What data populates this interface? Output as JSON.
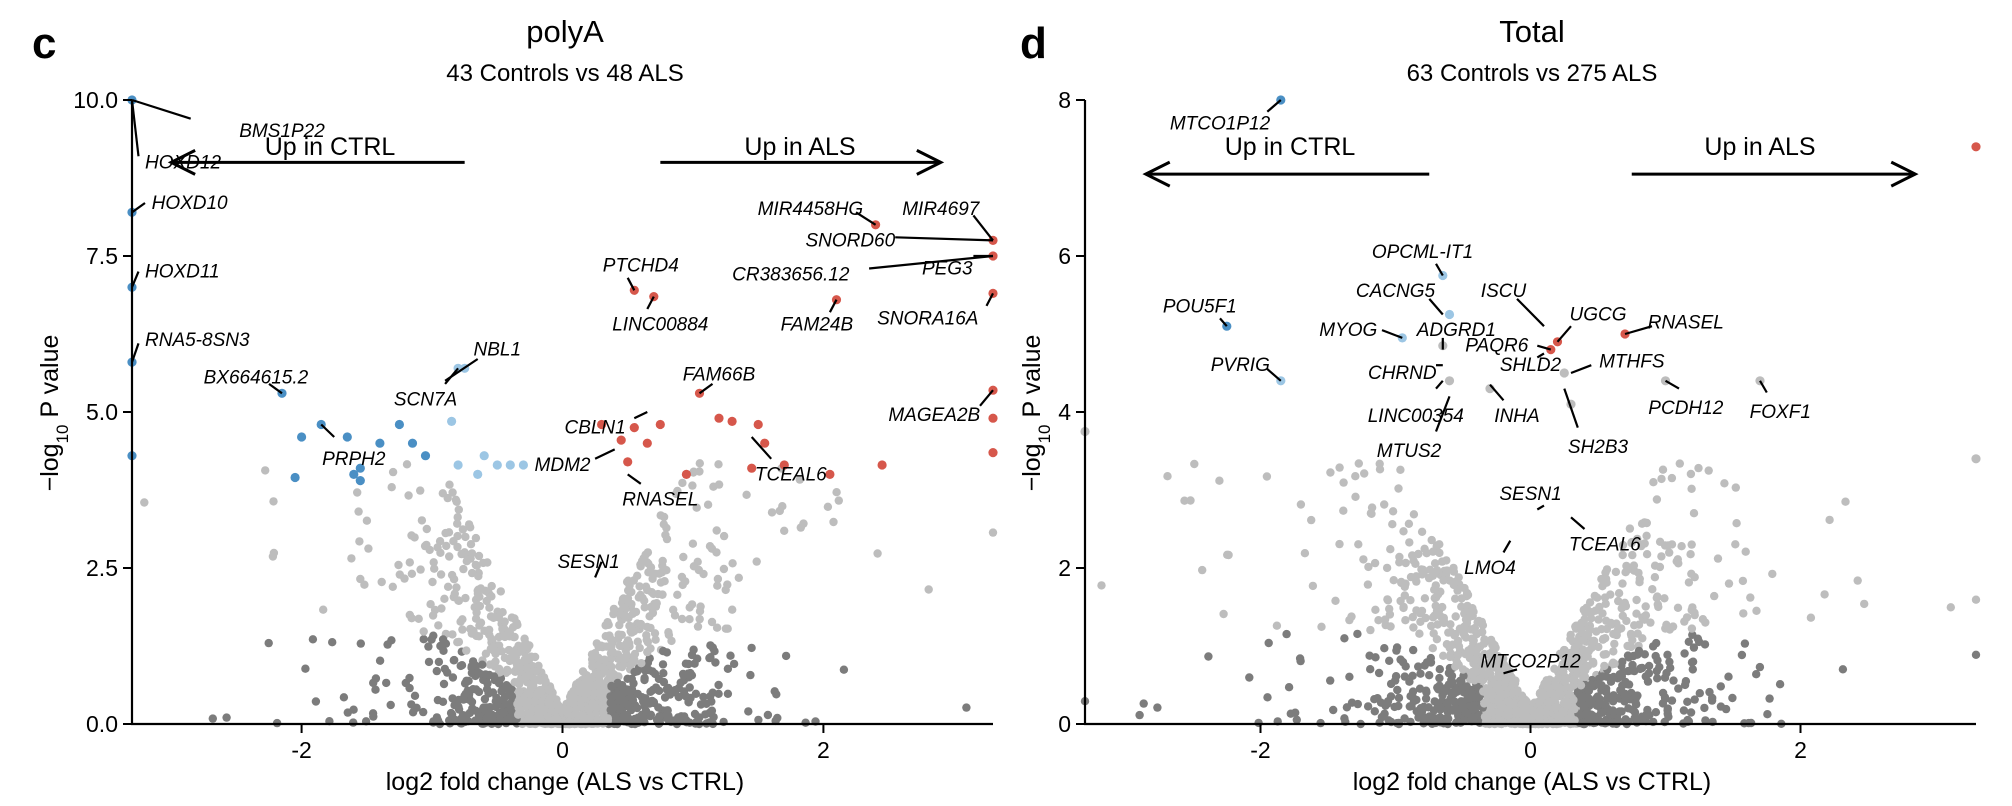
{
  "panels": [
    {
      "letter": "c",
      "title": "polyA",
      "subtitle": "43 Controls vs 48 ALS",
      "xlabel": "log2 fold change (ALS vs CTRL)",
      "ylabel": "−log",
      "ylabel_sub": "10",
      "ylabel_suffix": " P value",
      "up_ctrl": "Up in CTRL",
      "up_als": "Up in ALS"
    },
    {
      "letter": "d",
      "title": "Total",
      "subtitle": "63 Controls vs 275 ALS",
      "xlabel": "log2 fold change (ALS vs CTRL)",
      "ylabel": "−log",
      "ylabel_sub": "10",
      "ylabel_suffix": " P value",
      "up_ctrl": "Up in CTRL",
      "up_als": "Up in ALS"
    }
  ],
  "colors": {
    "up": "#d6574b",
    "down_dark": "#4a8fc4",
    "down_light": "#9cc6e4",
    "ns_light": "#bdbdbd",
    "ns_dark": "#7c7c7c"
  },
  "chart_data": [
    {
      "type": "scatter",
      "title": "polyA",
      "subtitle": "43 Controls vs 48 ALS",
      "xlabel": "log2 fold change (ALS vs CTRL)",
      "ylabel": "-log10 P value",
      "xlim": [
        -3.3,
        3.3
      ],
      "ylim": [
        0,
        10
      ],
      "xticks": [
        -2,
        0,
        2
      ],
      "xtick_labels": [
        "-2",
        "0",
        "2"
      ],
      "yticks": [
        0,
        2.5,
        5,
        7.5,
        10
      ],
      "ytick_labels": [
        "0.0",
        "2.5",
        "5.0",
        "7.5",
        "10.0"
      ],
      "cloud_n": 1500,
      "arrows": [
        [
          -0.75,
          -3.0,
          9.0
        ],
        [
          0.75,
          2.9,
          9.0
        ]
      ],
      "points": [
        {
          "x": -3.3,
          "y": 10.0,
          "c": "down_dark"
        },
        {
          "x": -3.3,
          "y": 8.2,
          "c": "down_dark"
        },
        {
          "x": -3.3,
          "y": 7.0,
          "c": "down_dark"
        },
        {
          "x": -3.3,
          "y": 5.8,
          "c": "down_dark"
        },
        {
          "x": -2.15,
          "y": 5.3,
          "c": "down_dark"
        },
        {
          "x": -2.0,
          "y": 4.6,
          "c": "down_dark"
        },
        {
          "x": -1.85,
          "y": 4.8,
          "c": "down_dark"
        },
        {
          "x": -1.65,
          "y": 4.6,
          "c": "down_dark"
        },
        {
          "x": -1.6,
          "y": 4.0,
          "c": "down_dark"
        },
        {
          "x": -1.55,
          "y": 4.1,
          "c": "down_dark"
        },
        {
          "x": -1.4,
          "y": 4.5,
          "c": "down_dark"
        },
        {
          "x": -1.25,
          "y": 4.8,
          "c": "down_dark"
        },
        {
          "x": -1.15,
          "y": 4.5,
          "c": "down_dark"
        },
        {
          "x": -1.05,
          "y": 4.3,
          "c": "down_dark"
        },
        {
          "x": -2.05,
          "y": 3.95,
          "c": "down_dark"
        },
        {
          "x": -1.55,
          "y": 3.9,
          "c": "down_dark"
        },
        {
          "x": -3.3,
          "y": 4.3,
          "c": "down_dark"
        },
        {
          "x": -0.8,
          "y": 5.7,
          "c": "down_light"
        },
        {
          "x": -0.75,
          "y": 5.7,
          "c": "down_light"
        },
        {
          "x": -0.85,
          "y": 4.85,
          "c": "down_light"
        },
        {
          "x": -0.8,
          "y": 4.15,
          "c": "down_light"
        },
        {
          "x": -0.65,
          "y": 4.0,
          "c": "down_light"
        },
        {
          "x": -0.6,
          "y": 4.3,
          "c": "down_light"
        },
        {
          "x": -0.5,
          "y": 4.15,
          "c": "down_light"
        },
        {
          "x": -0.4,
          "y": 4.15,
          "c": "down_light"
        },
        {
          "x": -0.3,
          "y": 4.15,
          "c": "down_light"
        },
        {
          "x": 0.55,
          "y": 6.95,
          "c": "up"
        },
        {
          "x": 0.7,
          "y": 6.85,
          "c": "up"
        },
        {
          "x": 1.05,
          "y": 5.3,
          "c": "up"
        },
        {
          "x": 2.1,
          "y": 6.8,
          "c": "up"
        },
        {
          "x": 2.4,
          "y": 8.0,
          "c": "up"
        },
        {
          "x": 3.3,
          "y": 7.75,
          "c": "up"
        },
        {
          "x": 3.3,
          "y": 7.5,
          "c": "up"
        },
        {
          "x": 3.3,
          "y": 6.9,
          "c": "up"
        },
        {
          "x": 3.3,
          "y": 5.35,
          "c": "up"
        },
        {
          "x": 3.3,
          "y": 4.9,
          "c": "up"
        },
        {
          "x": 3.3,
          "y": 4.35,
          "c": "up"
        },
        {
          "x": 0.3,
          "y": 4.8,
          "c": "up"
        },
        {
          "x": 0.45,
          "y": 4.55,
          "c": "up"
        },
        {
          "x": 0.55,
          "y": 4.75,
          "c": "up"
        },
        {
          "x": 0.65,
          "y": 4.5,
          "c": "up"
        },
        {
          "x": 0.75,
          "y": 4.8,
          "c": "up"
        },
        {
          "x": 0.5,
          "y": 4.2,
          "c": "up"
        },
        {
          "x": 0.95,
          "y": 4.0,
          "c": "up"
        },
        {
          "x": 1.2,
          "y": 4.9,
          "c": "up"
        },
        {
          "x": 1.3,
          "y": 4.85,
          "c": "up"
        },
        {
          "x": 1.5,
          "y": 4.8,
          "c": "up"
        },
        {
          "x": 1.55,
          "y": 4.5,
          "c": "up"
        },
        {
          "x": 1.45,
          "y": 4.1,
          "c": "up"
        },
        {
          "x": 1.7,
          "y": 4.15,
          "c": "up"
        },
        {
          "x": 2.05,
          "y": 4.0,
          "c": "up"
        },
        {
          "x": 2.45,
          "y": 4.15,
          "c": "up"
        }
      ],
      "labels": [
        {
          "text": "BMS1P22",
          "lx": -2.15,
          "ly": 9.5,
          "anchor": "middle",
          "px": -3.3,
          "py": 10.0,
          "ex": -2.85,
          "ey": 9.7
        },
        {
          "text": "HOXD12",
          "lx": -3.2,
          "ly": 9.0,
          "anchor": "start",
          "px": -3.3,
          "py": 10.0,
          "ex": -3.25,
          "ey": 9.1
        },
        {
          "text": "HOXD10",
          "lx": -3.15,
          "ly": 8.35,
          "anchor": "start",
          "px": -3.3,
          "py": 8.2,
          "ex": -3.2,
          "ey": 8.35
        },
        {
          "text": "HOXD11",
          "lx": -3.2,
          "ly": 7.25,
          "anchor": "start",
          "px": -3.3,
          "py": 7.0,
          "ex": -3.25,
          "ey": 7.25
        },
        {
          "text": "RNA5-8SN3",
          "lx": -3.2,
          "ly": 6.15,
          "anchor": "start",
          "px": -3.3,
          "py": 5.8,
          "ex": -3.25,
          "ey": 6.1
        },
        {
          "text": "BX664615.2",
          "lx": -2.35,
          "ly": 5.55,
          "anchor": "middle",
          "px": -2.15,
          "py": 5.3,
          "ex": -2.25,
          "ey": 5.45
        },
        {
          "text": "NBL1",
          "lx": -0.5,
          "ly": 6.0,
          "anchor": "middle",
          "px": -0.9,
          "py": 5.5,
          "ex": -0.65,
          "ey": 5.85
        },
        {
          "text": "SCN7A",
          "lx": -1.05,
          "ly": 5.2,
          "anchor": "middle",
          "px": -0.8,
          "py": 5.7,
          "ex": -0.9,
          "ey": 5.45
        },
        {
          "text": "PRPH2",
          "lx": -1.6,
          "ly": 4.25,
          "anchor": "middle",
          "px": -1.85,
          "py": 4.8,
          "ex": -1.75,
          "ey": 4.6
        },
        {
          "text": "PTCHD4",
          "lx": 0.6,
          "ly": 7.35,
          "anchor": "middle",
          "px": 0.55,
          "py": 6.95,
          "ex": 0.5,
          "ey": 7.15
        },
        {
          "text": "LINC00884",
          "lx": 0.75,
          "ly": 6.4,
          "anchor": "middle",
          "px": 0.7,
          "py": 6.85,
          "ex": 0.65,
          "ey": 6.65
        },
        {
          "text": "FAM66B",
          "lx": 1.2,
          "ly": 5.6,
          "anchor": "middle",
          "px": 1.05,
          "py": 5.3,
          "ex": 1.15,
          "ey": 5.45
        },
        {
          "text": "CBLN1",
          "lx": 0.25,
          "ly": 4.75,
          "anchor": "middle",
          "px": 0.65,
          "py": 5.0,
          "ex": 0.55,
          "ey": 4.9
        },
        {
          "text": "MDM2",
          "lx": 0.0,
          "ly": 4.15,
          "anchor": "middle",
          "px": 0.4,
          "py": 4.4,
          "ex": 0.25,
          "ey": 4.25
        },
        {
          "text": "RNASEL",
          "lx": 0.75,
          "ly": 3.6,
          "anchor": "middle",
          "px": 0.5,
          "py": 4.0,
          "ex": 0.6,
          "ey": 3.85
        },
        {
          "text": "SESN1",
          "lx": 0.2,
          "ly": 2.6,
          "anchor": "middle",
          "px": 0.3,
          "py": 2.6,
          "ex": 0.25,
          "ey": 2.35
        },
        {
          "text": "MIR4458HG",
          "lx": 1.9,
          "ly": 8.25,
          "anchor": "middle",
          "px": 2.4,
          "py": 8.0,
          "ex": 2.25,
          "ey": 8.2
        },
        {
          "text": "MIR4697",
          "lx": 2.9,
          "ly": 8.25,
          "anchor": "middle",
          "px": 3.3,
          "py": 7.75,
          "ex": 3.15,
          "ey": 8.15
        },
        {
          "text": "SNORD60",
          "lx": 2.55,
          "ly": 7.75,
          "anchor": "end",
          "px": 3.3,
          "py": 7.75,
          "ex": 2.55,
          "ey": 7.8
        },
        {
          "text": "PEG3",
          "lx": 2.95,
          "ly": 7.3,
          "anchor": "middle",
          "px": 3.3,
          "py": 7.5,
          "ex": 3.15,
          "ey": 7.5
        },
        {
          "text": "CR383656.12",
          "lx": 1.75,
          "ly": 7.2,
          "anchor": "middle",
          "px": 3.3,
          "py": 7.5,
          "ex": 2.35,
          "ey": 7.3
        },
        {
          "text": "FAM24B",
          "lx": 1.95,
          "ly": 6.4,
          "anchor": "middle",
          "px": 2.1,
          "py": 6.8,
          "ex": 2.05,
          "ey": 6.6
        },
        {
          "text": "SNORA16A",
          "lx": 2.8,
          "ly": 6.5,
          "anchor": "middle",
          "px": 3.3,
          "py": 6.9,
          "ex": 3.25,
          "ey": 6.7
        },
        {
          "text": "MAGEA2B",
          "lx": 2.85,
          "ly": 4.95,
          "anchor": "middle",
          "px": 3.3,
          "py": 5.35,
          "ex": 3.2,
          "ey": 5.1
        },
        {
          "text": "TCEAL6",
          "lx": 1.75,
          "ly": 4.0,
          "anchor": "middle",
          "px": 1.45,
          "py": 4.6,
          "ex": 1.6,
          "ey": 4.25
        }
      ]
    },
    {
      "type": "scatter",
      "title": "Total",
      "subtitle": "63 Controls vs 275 ALS",
      "xlabel": "log2 fold change (ALS vs CTRL)",
      "ylabel": "-log10 P value",
      "xlim": [
        -3.3,
        3.3
      ],
      "ylim": [
        0,
        8
      ],
      "xticks": [
        -2,
        0,
        2
      ],
      "xtick_labels": [
        "-2",
        "0",
        "2"
      ],
      "yticks": [
        0,
        2,
        4,
        6,
        8
      ],
      "ytick_labels": [
        "0",
        "2",
        "4",
        "6",
        "8"
      ],
      "cloud_n": 1700,
      "arrows": [
        [
          -0.75,
          -2.85,
          7.05
        ],
        [
          0.75,
          2.85,
          7.05
        ]
      ],
      "points": [
        {
          "x": -1.85,
          "y": 8.0,
          "c": "down_dark"
        },
        {
          "x": -2.25,
          "y": 5.1,
          "c": "down_dark"
        },
        {
          "x": -1.85,
          "y": 4.4,
          "c": "down_light"
        },
        {
          "x": -0.65,
          "y": 5.75,
          "c": "down_light"
        },
        {
          "x": -0.6,
          "y": 5.25,
          "c": "down_light"
        },
        {
          "x": -0.95,
          "y": 4.95,
          "c": "down_light"
        },
        {
          "x": -0.65,
          "y": 4.85,
          "c": "ns_light"
        },
        {
          "x": 0.15,
          "y": 4.8,
          "c": "up"
        },
        {
          "x": 0.2,
          "y": 4.9,
          "c": "up"
        },
        {
          "x": 0.7,
          "y": 5.0,
          "c": "up"
        },
        {
          "x": 3.3,
          "y": 7.4,
          "c": "up"
        },
        {
          "x": 1.0,
          "y": 4.4,
          "c": "ns_light"
        },
        {
          "x": 1.7,
          "y": 4.4,
          "c": "ns_light"
        },
        {
          "x": 0.25,
          "y": 4.5,
          "c": "ns_light"
        },
        {
          "x": 0.3,
          "y": 4.1,
          "c": "ns_light"
        },
        {
          "x": -0.3,
          "y": 4.3,
          "c": "ns_light"
        },
        {
          "x": -0.6,
          "y": 4.4,
          "c": "ns_light"
        },
        {
          "x": 3.3,
          "y": 3.4,
          "c": "ns_light"
        },
        {
          "x": -3.3,
          "y": 3.75,
          "c": "ns_light"
        }
      ],
      "labels": [
        {
          "text": "MTCO1P12",
          "lx": -2.3,
          "ly": 7.7,
          "anchor": "middle",
          "px": -1.85,
          "py": 8.0,
          "ex": -1.95,
          "ey": 7.85
        },
        {
          "text": "POU5F1",
          "lx": -2.45,
          "ly": 5.35,
          "anchor": "middle",
          "px": -2.25,
          "py": 5.1,
          "ex": -2.3,
          "ey": 5.2
        },
        {
          "text": "PVRIG",
          "lx": -2.15,
          "ly": 4.6,
          "anchor": "middle",
          "px": -1.85,
          "py": 4.4,
          "ex": -1.95,
          "ey": 4.55
        },
        {
          "text": "OPCML-IT1",
          "lx": -0.8,
          "ly": 6.05,
          "anchor": "middle",
          "px": -0.65,
          "py": 5.75,
          "ex": -0.7,
          "ey": 5.9
        },
        {
          "text": "CACNG5",
          "lx": -1.0,
          "ly": 5.55,
          "anchor": "middle",
          "px": -0.65,
          "py": 5.25,
          "ex": -0.75,
          "ey": 5.45
        },
        {
          "text": "MYOG",
          "lx": -1.35,
          "ly": 5.05,
          "anchor": "middle",
          "px": -0.95,
          "py": 4.95,
          "ex": -1.1,
          "ey": 5.05
        },
        {
          "text": "ADGRD1",
          "lx": -0.55,
          "ly": 5.05,
          "anchor": "middle",
          "px": -0.65,
          "py": 4.8,
          "ex": -0.65,
          "ey": 4.95
        },
        {
          "text": "CHRND",
          "lx": -0.95,
          "ly": 4.5,
          "anchor": "middle",
          "px": -0.65,
          "py": 4.6,
          "ex": -0.7,
          "ey": 4.6
        },
        {
          "text": "LINC00354",
          "lx": -0.85,
          "ly": 3.95,
          "anchor": "middle",
          "px": -0.65,
          "py": 4.4,
          "ex": -0.7,
          "ey": 4.3
        },
        {
          "text": "MTUS2",
          "lx": -0.9,
          "ly": 3.5,
          "anchor": "middle",
          "px": -0.6,
          "py": 4.2,
          "ex": -0.7,
          "ey": 3.75
        },
        {
          "text": "ISCU",
          "lx": -0.2,
          "ly": 5.55,
          "anchor": "middle",
          "px": 0.1,
          "py": 5.1,
          "ex": -0.1,
          "ey": 5.45
        },
        {
          "text": "PAQR6",
          "lx": -0.25,
          "ly": 4.85,
          "anchor": "middle",
          "px": 0.15,
          "py": 4.8,
          "ex": 0.05,
          "ey": 4.85
        },
        {
          "text": "UGCG",
          "lx": 0.5,
          "ly": 5.25,
          "anchor": "middle",
          "px": 0.2,
          "py": 4.9,
          "ex": 0.3,
          "ey": 5.1
        },
        {
          "text": "RNASEL",
          "lx": 1.15,
          "ly": 5.15,
          "anchor": "middle",
          "px": 0.7,
          "py": 5.0,
          "ex": 0.9,
          "ey": 5.1
        },
        {
          "text": "SHLD2",
          "lx": 0.0,
          "ly": 4.6,
          "anchor": "middle",
          "px": 0.1,
          "py": 4.75,
          "ex": 0.05,
          "ey": 4.7
        },
        {
          "text": "MTHFS",
          "lx": 0.75,
          "ly": 4.65,
          "anchor": "middle",
          "px": 0.3,
          "py": 4.5,
          "ex": 0.45,
          "ey": 4.6
        },
        {
          "text": "INHA",
          "lx": -0.1,
          "ly": 3.95,
          "anchor": "middle",
          "px": -0.3,
          "py": 4.35,
          "ex": -0.2,
          "ey": 4.15
        },
        {
          "text": "SH2B3",
          "lx": 0.5,
          "ly": 3.55,
          "anchor": "middle",
          "px": 0.25,
          "py": 4.3,
          "ex": 0.35,
          "ey": 3.8
        },
        {
          "text": "PCDH12",
          "lx": 1.15,
          "ly": 4.05,
          "anchor": "middle",
          "px": 1.0,
          "py": 4.4,
          "ex": 1.1,
          "ey": 4.3
        },
        {
          "text": "FOXF1",
          "lx": 1.85,
          "ly": 4.0,
          "anchor": "middle",
          "px": 1.7,
          "py": 4.4,
          "ex": 1.75,
          "ey": 4.25
        },
        {
          "text": "SESN1",
          "lx": 0.0,
          "ly": 2.95,
          "anchor": "middle",
          "px": 0.05,
          "py": 2.75,
          "ex": 0.1,
          "ey": 2.8
        },
        {
          "text": "TCEAL6",
          "lx": 0.55,
          "ly": 2.3,
          "anchor": "middle",
          "px": 0.3,
          "py": 2.65,
          "ex": 0.4,
          "ey": 2.5
        },
        {
          "text": "LMO4",
          "lx": -0.3,
          "ly": 2.0,
          "anchor": "middle",
          "px": -0.15,
          "py": 2.35,
          "ex": -0.2,
          "ey": 2.2
        },
        {
          "text": "MTCO2P12",
          "lx": 0.0,
          "ly": 0.8,
          "anchor": "middle",
          "px": -0.2,
          "py": 0.65,
          "ex": -0.1,
          "ey": 0.7
        }
      ]
    }
  ]
}
